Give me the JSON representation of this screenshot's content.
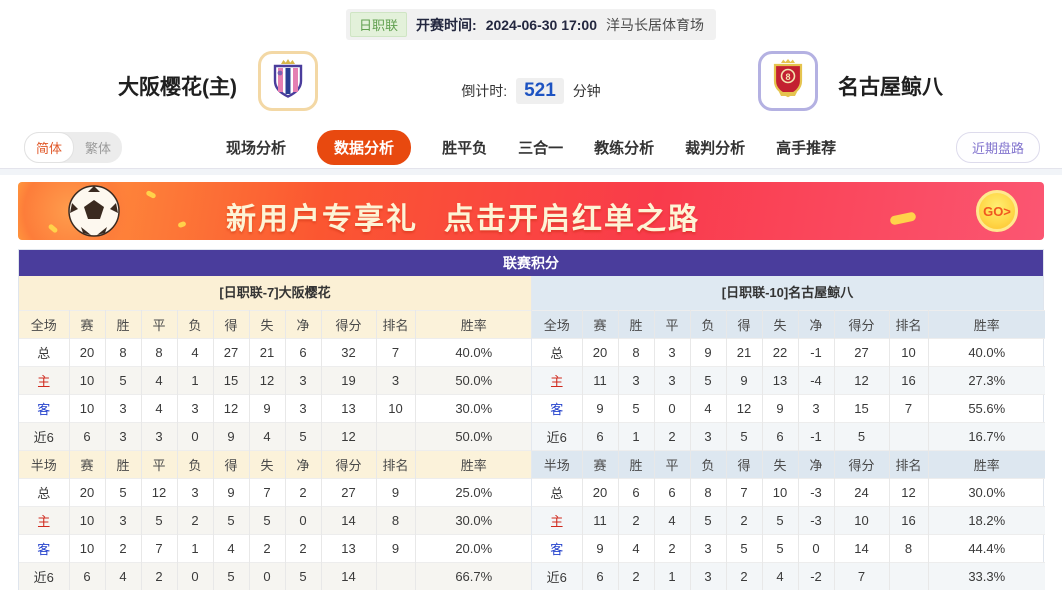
{
  "header": {
    "league_badge": "日职联",
    "kickoff_label": "开赛时间:",
    "kickoff_time": "2024-06-30 17:00",
    "venue": "洋马长居体育场",
    "home_team": "大阪樱花(主)",
    "away_team": "名古屋鲸八",
    "countdown_label": "倒计时:",
    "countdown_value": "521",
    "countdown_unit": "分钟"
  },
  "nav": {
    "lang": {
      "simplified": "简体",
      "traditional": "繁体"
    },
    "tabs": [
      {
        "label": "现场分析",
        "active": false
      },
      {
        "label": "数据分析",
        "active": true
      },
      {
        "label": "胜平负",
        "active": false
      },
      {
        "label": "三合一",
        "active": false
      },
      {
        "label": "教练分析",
        "active": false
      },
      {
        "label": "裁判分析",
        "active": false
      },
      {
        "label": "高手推荐",
        "active": false
      }
    ],
    "recent_button": "近期盘路"
  },
  "banner": {
    "title1": "新用户专享礼",
    "title2": "点击开启红单之路",
    "go_label": "GO>"
  },
  "colors": {
    "accent_orange": "#e8490f",
    "title_purple": "#4a3d9c",
    "countdown_blue": "#1d53c2",
    "home_header_bg": "#fbf0d5",
    "away_header_bg": "#dfe9f2",
    "row_label_red": "#d02a1e",
    "row_label_blue": "#2341cc",
    "badge_green": "#61a050"
  },
  "table": {
    "title": "联赛积分",
    "columns": [
      "赛",
      "胜",
      "平",
      "负",
      "得",
      "失",
      "净",
      "得分",
      "排名",
      "胜率"
    ],
    "home": {
      "header": "[日职联-7]大阪樱花",
      "full": {
        "label": "全场",
        "rows": [
          {
            "label": "总",
            "values": [
              "20",
              "8",
              "8",
              "4",
              "27",
              "21",
              "6",
              "32",
              "7",
              "40.0%"
            ]
          },
          {
            "label": "主",
            "values": [
              "10",
              "5",
              "4",
              "1",
              "15",
              "12",
              "3",
              "19",
              "3",
              "50.0%"
            ]
          },
          {
            "label": "客",
            "values": [
              "10",
              "3",
              "4",
              "3",
              "12",
              "9",
              "3",
              "13",
              "10",
              "30.0%"
            ]
          },
          {
            "label": "近6",
            "values": [
              "6",
              "3",
              "3",
              "0",
              "9",
              "4",
              "5",
              "12",
              "",
              "50.0%"
            ]
          }
        ]
      },
      "half": {
        "label": "半场",
        "rows": [
          {
            "label": "总",
            "values": [
              "20",
              "5",
              "12",
              "3",
              "9",
              "7",
              "2",
              "27",
              "9",
              "25.0%"
            ]
          },
          {
            "label": "主",
            "values": [
              "10",
              "3",
              "5",
              "2",
              "5",
              "5",
              "0",
              "14",
              "8",
              "30.0%"
            ]
          },
          {
            "label": "客",
            "values": [
              "10",
              "2",
              "7",
              "1",
              "4",
              "2",
              "2",
              "13",
              "9",
              "20.0%"
            ]
          },
          {
            "label": "近6",
            "values": [
              "6",
              "4",
              "2",
              "0",
              "5",
              "0",
              "5",
              "14",
              "",
              "66.7%"
            ]
          }
        ]
      }
    },
    "away": {
      "header": "[日职联-10]名古屋鲸八",
      "full": {
        "label": "全场",
        "rows": [
          {
            "label": "总",
            "values": [
              "20",
              "8",
              "3",
              "9",
              "21",
              "22",
              "-1",
              "27",
              "10",
              "40.0%"
            ]
          },
          {
            "label": "主",
            "values": [
              "11",
              "3",
              "3",
              "5",
              "9",
              "13",
              "-4",
              "12",
              "16",
              "27.3%"
            ]
          },
          {
            "label": "客",
            "values": [
              "9",
              "5",
              "0",
              "4",
              "12",
              "9",
              "3",
              "15",
              "7",
              "55.6%"
            ]
          },
          {
            "label": "近6",
            "values": [
              "6",
              "1",
              "2",
              "3",
              "5",
              "6",
              "-1",
              "5",
              "",
              "16.7%"
            ]
          }
        ]
      },
      "half": {
        "label": "半场",
        "rows": [
          {
            "label": "总",
            "values": [
              "20",
              "6",
              "6",
              "8",
              "7",
              "10",
              "-3",
              "24",
              "12",
              "30.0%"
            ]
          },
          {
            "label": "主",
            "values": [
              "11",
              "2",
              "4",
              "5",
              "2",
              "5",
              "-3",
              "10",
              "16",
              "18.2%"
            ]
          },
          {
            "label": "客",
            "values": [
              "9",
              "4",
              "2",
              "3",
              "5",
              "5",
              "0",
              "14",
              "8",
              "44.4%"
            ]
          },
          {
            "label": "近6",
            "values": [
              "6",
              "2",
              "1",
              "3",
              "2",
              "4",
              "-2",
              "7",
              "",
              "33.3%"
            ]
          }
        ]
      }
    }
  }
}
